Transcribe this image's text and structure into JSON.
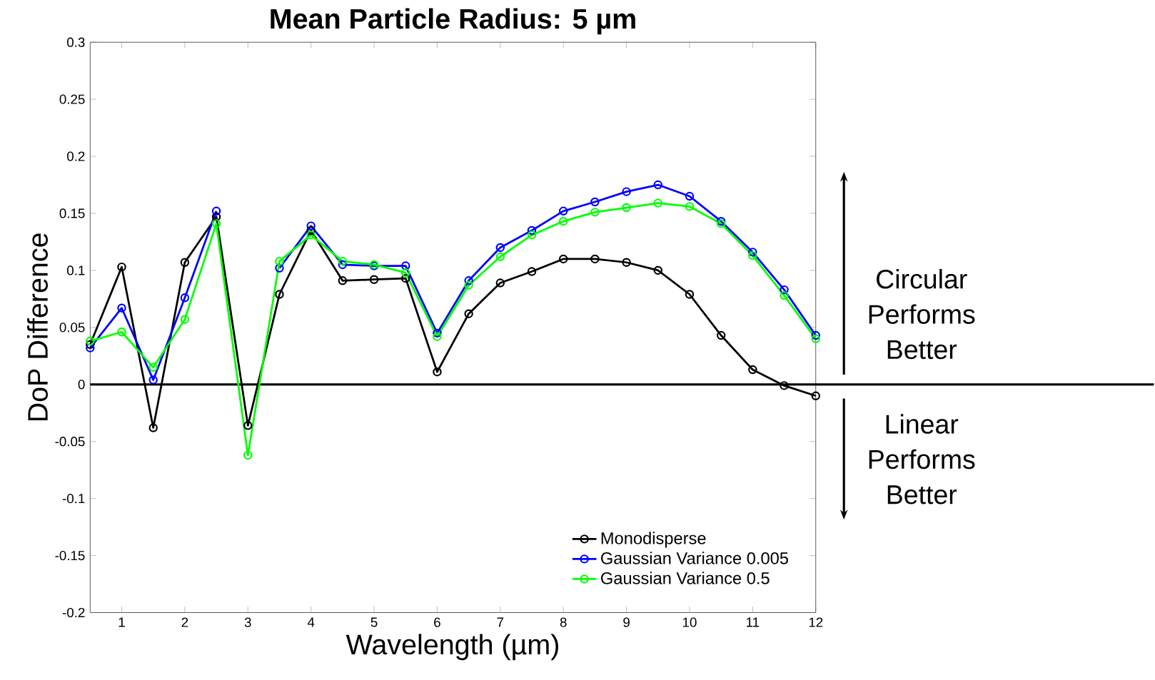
{
  "chart_data": {
    "type": "line",
    "title": "Mean Particle Radius: 5 µm",
    "xlabel": "Wavelength (µm)",
    "ylabel": "DoP Difference",
    "x": [
      0.5,
      1,
      1.5,
      2,
      2.5,
      3,
      3.5,
      4,
      4.5,
      5,
      5.5,
      6,
      6.5,
      7,
      7.5,
      8,
      8.5,
      9,
      9.5,
      10,
      10.5,
      11,
      11.5,
      12
    ],
    "series": [
      {
        "name": "Monodisperse",
        "color": "#000000",
        "values": [
          0.035,
          0.103,
          -0.038,
          0.107,
          0.147,
          -0.036,
          0.079,
          0.135,
          0.091,
          0.092,
          0.093,
          0.011,
          0.062,
          0.089,
          0.099,
          0.11,
          0.11,
          0.107,
          0.1,
          0.079,
          0.043,
          0.013,
          -0.001,
          -0.01
        ]
      },
      {
        "name": "Gaussian Variance 0.005",
        "color": "#0000ff",
        "values": [
          0.032,
          0.067,
          0.004,
          0.076,
          0.152,
          null,
          0.102,
          0.139,
          0.105,
          0.104,
          0.104,
          0.045,
          0.091,
          0.12,
          0.135,
          0.152,
          0.16,
          0.169,
          0.175,
          0.165,
          0.143,
          0.116,
          0.083,
          0.043
        ]
      },
      {
        "name": "Gaussian Variance 0.5",
        "color": "#00ff00",
        "values": [
          0.038,
          0.046,
          0.015,
          0.057,
          0.141,
          -0.062,
          0.108,
          0.131,
          0.108,
          0.105,
          0.098,
          0.042,
          0.087,
          0.112,
          0.131,
          0.143,
          0.151,
          0.155,
          0.159,
          0.156,
          0.141,
          0.113,
          0.078,
          0.04
        ]
      }
    ],
    "xlim": [
      0.5,
      12
    ],
    "ylim": [
      -0.2,
      0.3
    ],
    "xticks": [
      1,
      2,
      3,
      4,
      5,
      6,
      7,
      8,
      9,
      10,
      11,
      12
    ],
    "yticks": [
      -0.2,
      -0.15,
      -0.1,
      -0.05,
      0,
      0.05,
      0.1,
      0.15,
      0.2,
      0.25,
      0.3
    ],
    "ref_lines": [
      {
        "axis": "y",
        "value": 0,
        "color": "#000000"
      }
    ],
    "annotations": [
      "Circular Performs Better",
      "Linear Performs Better"
    ],
    "marker": "circle",
    "line_style": "solid",
    "grid": false,
    "legend": "bottom right"
  }
}
